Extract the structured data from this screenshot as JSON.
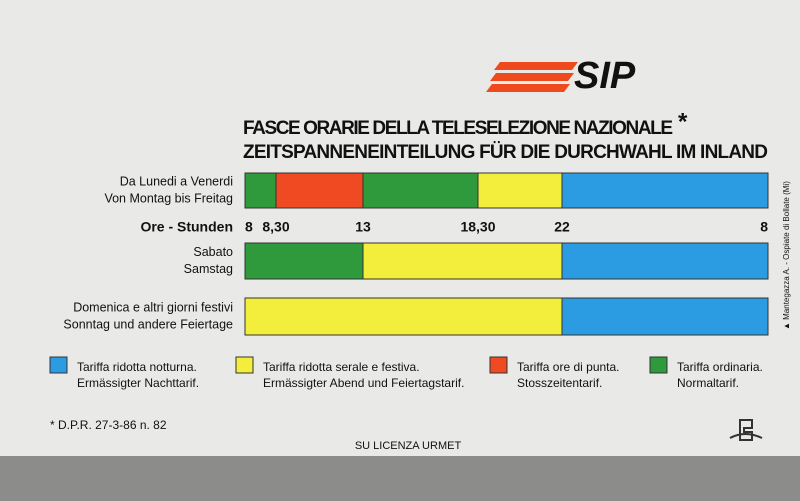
{
  "logo": "SIP",
  "title": {
    "line1": "FASCE ORARIE DELLA TELESELEZIONE NAZIONALE",
    "mark": "*",
    "line2": "ZEITSPANNENEINTEILUNG FÜR DIE DURCHWAHL IM INLAND"
  },
  "rows": [
    {
      "label": [
        "Da Lunedi a Venerdi",
        "Von Montag bis Freitag"
      ],
      "segments": [
        "#2f9a3c",
        "#ef4a22",
        "#2f9a3c",
        "#f3ee3c",
        "#2b9ce2"
      ]
    },
    {
      "label": [
        "Sabato",
        "Samstag"
      ],
      "segments": [
        "#2f9a3c",
        "#f3ee3c",
        "#2b9ce2"
      ]
    },
    {
      "label": [
        "Domenica e altri giorni festivi",
        "Sonntag und andere Feiertage"
      ],
      "segments": [
        "#f3ee3c",
        "#2b9ce2"
      ]
    }
  ],
  "hours_label": "Ore - Stunden",
  "hours": [
    "8",
    "8,30",
    "13",
    "18,30",
    "22",
    "8"
  ],
  "legend": [
    {
      "color": "#2b9ce2",
      "lines": [
        "Tariffa ridotta notturna.",
        "Ermässigter Nachttarif."
      ]
    },
    {
      "color": "#f3ee3c",
      "lines": [
        "Tariffa ridotta serale e festiva.",
        "Ermässigter Abend und Feiertagstarif."
      ]
    },
    {
      "color": "#ef4a22",
      "lines": [
        "Tariffa ore di punta.",
        "Stosszeitentarif."
      ]
    },
    {
      "color": "#2f9a3c",
      "lines": [
        "Tariffa ordinaria.",
        "Normaltarif."
      ]
    }
  ],
  "footnote": "* D.P.R. 27-3-86 n. 82",
  "license": "SU LICENZA URMET",
  "printer": "▲ Mantegazza A. - Ospiate di Bollate (Mi)"
}
